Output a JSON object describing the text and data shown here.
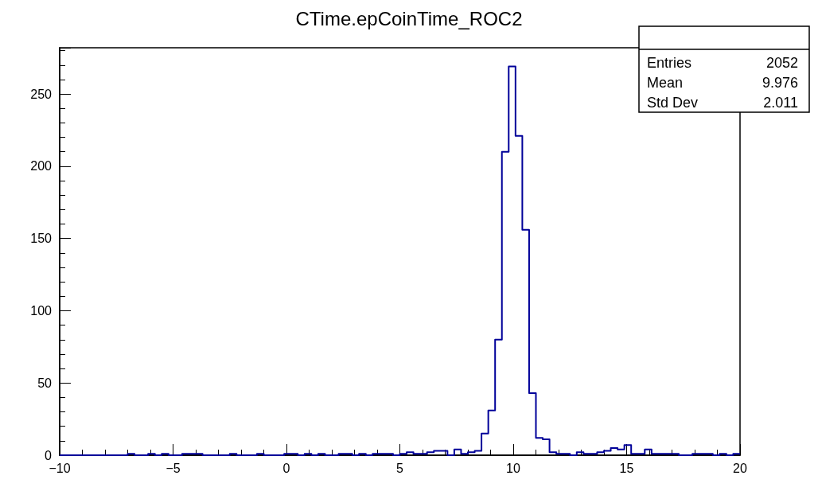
{
  "chart_data": {
    "type": "histogram",
    "title": "CTime.epCoinTime_ROC2",
    "bins": [
      -10,
      -9.7,
      -9.4,
      -9.1,
      -8.8,
      -8.5,
      -8.2,
      -7.9,
      -7.6,
      -7.3,
      -7,
      -6.7,
      -6.4,
      -6.1,
      -5.8,
      -5.5,
      -5.2,
      -4.9,
      -4.6,
      -4.3,
      -4,
      -3.7,
      -3.4,
      -3.1,
      -2.8,
      -2.5,
      -2.2,
      -1.9,
      -1.6,
      -1.3,
      -1,
      -0.7,
      -0.4,
      -0.1,
      0.2,
      0.5,
      0.8,
      1.1,
      1.4,
      1.7,
      2,
      2.3,
      2.6,
      2.9,
      3.2,
      3.5,
      3.8,
      4.1,
      4.4,
      4.7,
      5,
      5.3,
      5.6,
      5.9,
      6.2,
      6.5,
      6.8,
      7.1,
      7.4,
      7.7,
      8,
      8.3,
      8.6,
      8.9,
      9.2,
      9.5,
      9.8,
      10.1,
      10.4,
      10.7,
      11,
      11.3,
      11.6,
      11.9,
      12.2,
      12.5,
      12.8,
      13.1,
      13.4,
      13.7,
      14,
      14.3,
      14.6,
      14.9,
      15.2,
      15.5,
      15.8,
      16.1,
      16.4,
      16.7,
      17,
      17.3,
      17.6,
      17.9,
      18.2,
      18.5,
      18.8,
      19.1,
      19.4,
      19.7,
      20
    ],
    "values": [
      0,
      0,
      0,
      0,
      0,
      0,
      0,
      0,
      0,
      0,
      1,
      0,
      0,
      1,
      0,
      1,
      0,
      0,
      1,
      1,
      1,
      0,
      0,
      0,
      0,
      1,
      0,
      0,
      0,
      1,
      0,
      0,
      0,
      1,
      1,
      0,
      1,
      0,
      1,
      0,
      0,
      1,
      1,
      0,
      1,
      0,
      1,
      1,
      1,
      0,
      1,
      2,
      1,
      1,
      2,
      3,
      3,
      0,
      4,
      1,
      2,
      3,
      15,
      31,
      80,
      210,
      269,
      221,
      156,
      43,
      12,
      11,
      2,
      1,
      1,
      0,
      2,
      1,
      1,
      2,
      3,
      5,
      4,
      7,
      1,
      1,
      4,
      1,
      1,
      1,
      1,
      0,
      0,
      1,
      1,
      1,
      0,
      1,
      0,
      1
    ],
    "color": "#000099",
    "xlim": [
      -10,
      20
    ],
    "xticks": [
      -10,
      -5,
      0,
      5,
      10,
      15,
      20
    ],
    "ylim": [
      0,
      282
    ],
    "yticks": [
      0,
      50,
      100,
      150,
      200,
      250
    ],
    "grid": false,
    "annotations": [
      "Entries 2052",
      "Mean 9.976",
      "Std Dev 2.011"
    ]
  }
}
